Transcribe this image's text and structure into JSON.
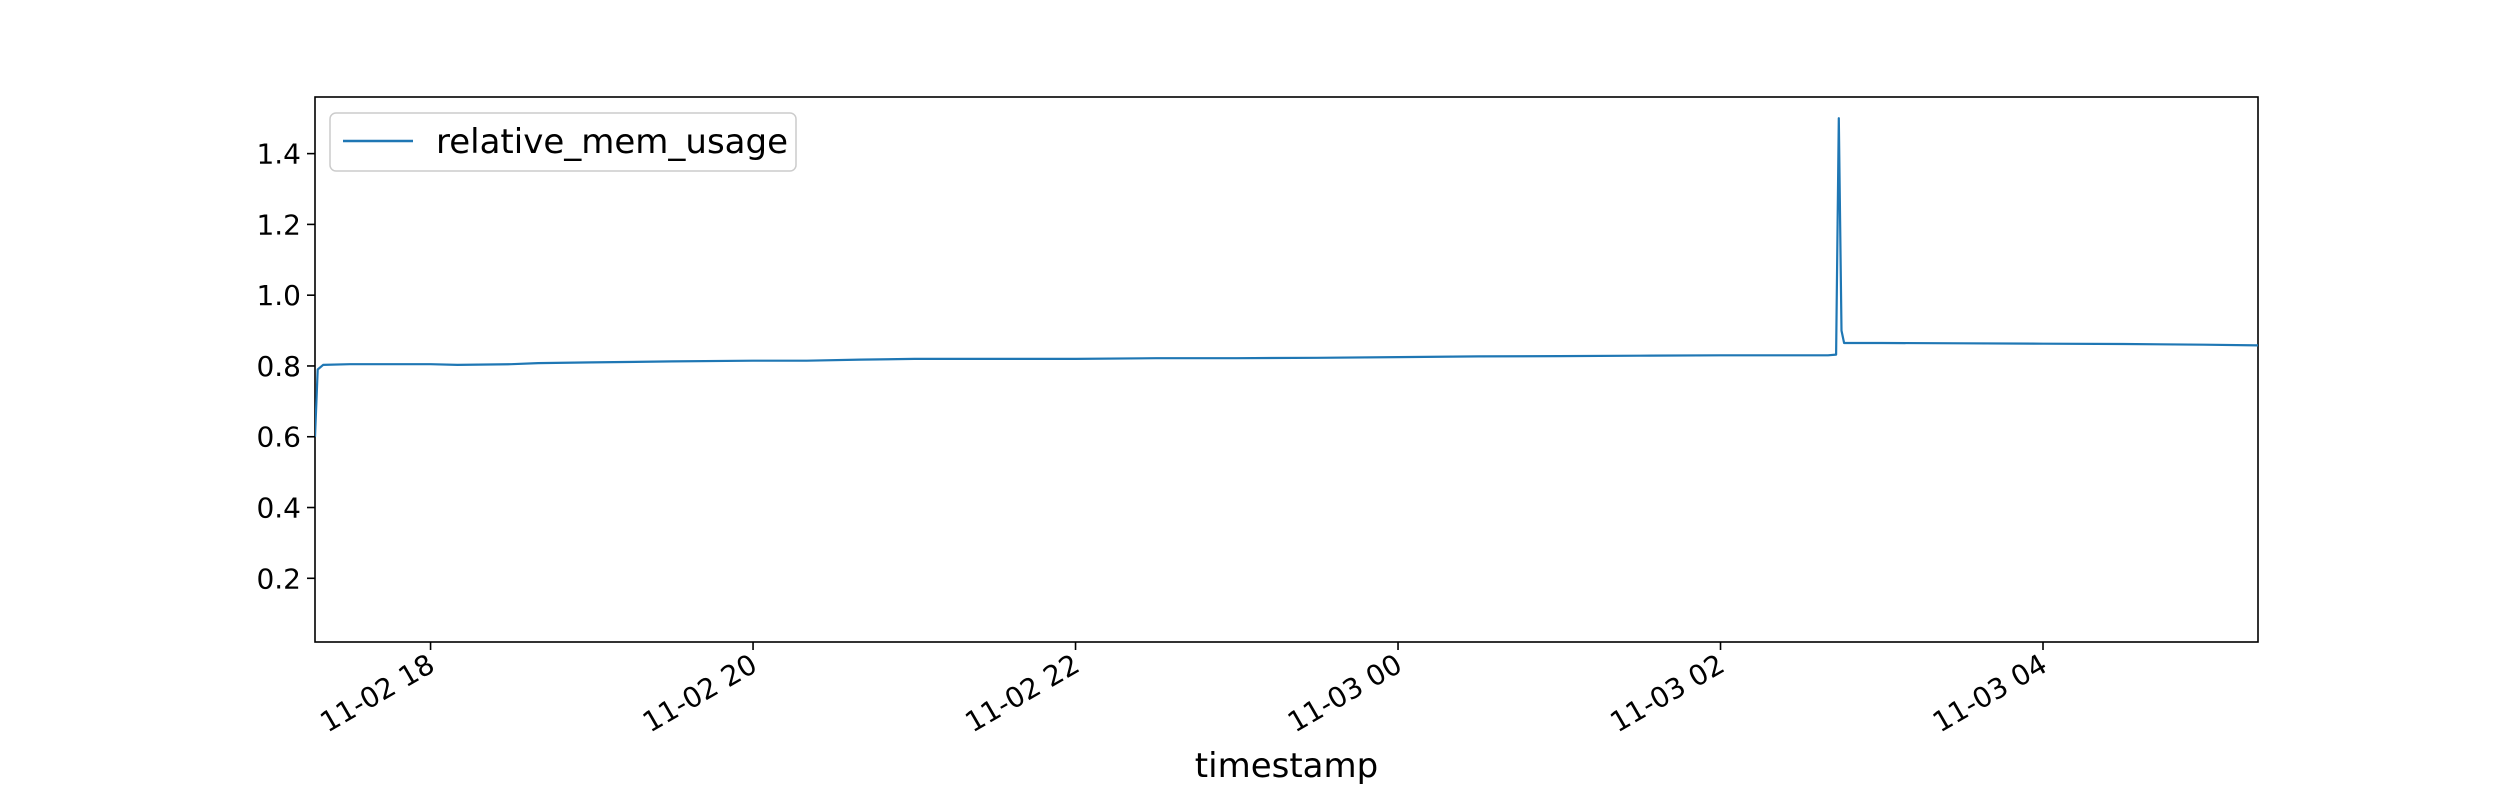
{
  "chart_data": {
    "type": "line",
    "title": "",
    "xlabel": "timestamp",
    "ylabel": "",
    "x_type": "datetime",
    "xlim": [
      "2021-11-02 17:17",
      "2021-11-03 05:20"
    ],
    "ylim": [
      0.02,
      1.56
    ],
    "x_ticks": [
      "2021-11-02 18:00",
      "2021-11-02 20:00",
      "2021-11-02 22:00",
      "2021-11-03 00:00",
      "2021-11-03 02:00",
      "2021-11-03 04:00"
    ],
    "x_tick_labels": [
      "11-02 18",
      "11-02 20",
      "11-02 22",
      "11-03 00",
      "11-03 02",
      "11-03 04"
    ],
    "y_ticks": [
      0.2,
      0.4,
      0.6,
      0.8,
      1.0,
      1.2,
      1.4
    ],
    "y_tick_labels": [
      "0.2",
      "0.4",
      "0.6",
      "0.8",
      "1.0",
      "1.2",
      "1.4"
    ],
    "grid": false,
    "legend_position": "upper-left",
    "series": [
      {
        "name": "relative_mem_usage",
        "color": "#1f77b4",
        "points": [
          [
            "2021-11-02 17:17",
            0.6
          ],
          [
            "2021-11-02 17:18",
            0.79
          ],
          [
            "2021-11-02 17:20",
            0.803
          ],
          [
            "2021-11-02 17:30",
            0.805
          ],
          [
            "2021-11-02 18:00",
            0.805
          ],
          [
            "2021-11-02 18:10",
            0.803
          ],
          [
            "2021-11-02 18:30",
            0.805
          ],
          [
            "2021-11-02 18:40",
            0.808
          ],
          [
            "2021-11-02 19:00",
            0.81
          ],
          [
            "2021-11-02 19:30",
            0.813
          ],
          [
            "2021-11-02 20:00",
            0.815
          ],
          [
            "2021-11-02 20:20",
            0.815
          ],
          [
            "2021-11-02 20:40",
            0.818
          ],
          [
            "2021-11-02 21:00",
            0.82
          ],
          [
            "2021-11-02 21:40",
            0.82
          ],
          [
            "2021-11-02 22:00",
            0.82
          ],
          [
            "2021-11-02 22:30",
            0.822
          ],
          [
            "2021-11-02 23:00",
            0.822
          ],
          [
            "2021-11-02 23:30",
            0.823
          ],
          [
            "2021-11-03 00:00",
            0.825
          ],
          [
            "2021-11-03 00:30",
            0.827
          ],
          [
            "2021-11-03 01:00",
            0.828
          ],
          [
            "2021-11-03 01:30",
            0.829
          ],
          [
            "2021-11-03 02:00",
            0.83
          ],
          [
            "2021-11-03 02:40",
            0.83
          ],
          [
            "2021-11-03 02:43",
            0.832
          ],
          [
            "2021-11-03 02:44",
            1.5
          ],
          [
            "2021-11-03 02:45",
            0.9
          ],
          [
            "2021-11-03 02:46",
            0.865
          ],
          [
            "2021-11-03 03:00",
            0.865
          ],
          [
            "2021-11-03 03:30",
            0.864
          ],
          [
            "2021-11-03 04:00",
            0.863
          ],
          [
            "2021-11-03 04:30",
            0.862
          ],
          [
            "2021-11-03 05:00",
            0.86
          ],
          [
            "2021-11-03 05:20",
            0.858
          ]
        ]
      }
    ]
  }
}
